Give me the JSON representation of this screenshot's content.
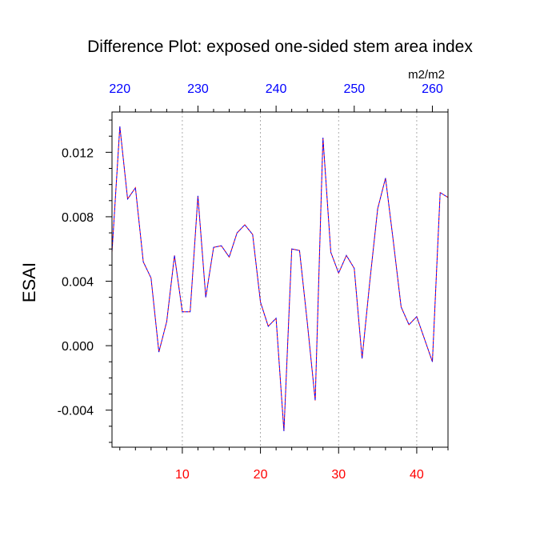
{
  "chart_data": {
    "type": "line",
    "title": "Difference Plot: exposed one-sided stem area index",
    "ylabel": "ESAI",
    "units_label": "m2/m2",
    "xlim": [
      1,
      44
    ],
    "ylim": [
      -0.0063,
      0.0145
    ],
    "bottom_ticks": [
      {
        "value": 10,
        "label": "10"
      },
      {
        "value": 20,
        "label": "20"
      },
      {
        "value": 30,
        "label": "30"
      },
      {
        "value": 40,
        "label": "40"
      }
    ],
    "top_ticks": [
      {
        "value": 2,
        "label": "220"
      },
      {
        "value": 12,
        "label": "230"
      },
      {
        "value": 22,
        "label": "240"
      },
      {
        "value": 32,
        "label": "250"
      },
      {
        "value": 42,
        "label": "260"
      }
    ],
    "y_ticks": [
      {
        "value": 0.012,
        "label": "0.012"
      },
      {
        "value": 0.008,
        "label": "0.008"
      },
      {
        "value": 0.004,
        "label": "0.004"
      },
      {
        "value": 0.0,
        "label": "0.000"
      },
      {
        "value": -0.004,
        "label": "-0.004"
      }
    ],
    "grid_x": [
      10,
      20,
      30,
      40
    ],
    "series": [
      {
        "x": [
          1,
          2,
          3,
          4,
          5,
          6,
          7,
          8,
          9,
          10,
          11,
          12,
          13,
          14,
          15,
          16,
          17,
          18,
          19,
          20,
          21,
          22,
          23,
          24,
          25,
          26,
          27,
          28,
          29,
          30,
          31,
          32,
          33,
          34,
          35,
          36,
          37,
          38,
          39,
          40,
          41,
          42,
          43,
          44
        ],
        "values": [
          0.0058,
          0.0136,
          0.0091,
          0.0098,
          0.0052,
          0.0042,
          -0.0004,
          0.0015,
          0.0056,
          0.0021,
          0.0021,
          0.0093,
          0.003,
          0.0061,
          0.0062,
          0.0055,
          0.007,
          0.0075,
          0.0069,
          0.0027,
          0.0012,
          0.0017,
          -0.0053,
          0.006,
          0.0059,
          0.0014,
          -0.0034,
          0.0129,
          0.0058,
          0.0045,
          0.0056,
          0.0048,
          -0.0008,
          0.004,
          0.0085,
          0.0104,
          0.0065,
          0.0024,
          0.0013,
          0.0018,
          0.0004,
          -0.001,
          0.0095,
          0.0092
        ]
      }
    ],
    "colors": {
      "line_a": "#ff0000",
      "line_b": "#0000ff",
      "bottom_tick_text": "#ff0000",
      "top_tick_text": "#0000ff",
      "grid": "#999999"
    }
  }
}
